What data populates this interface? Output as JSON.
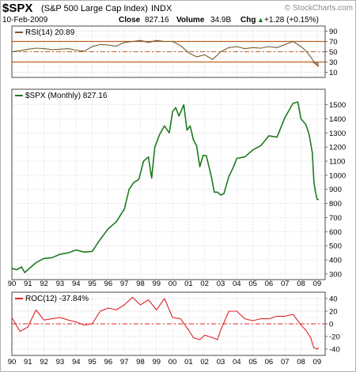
{
  "header": {
    "symbol": "$SPX",
    "name": "(S&P 500 Large Cap Index)",
    "exchange": "INDX",
    "watermark": "© StockCharts.com",
    "date": "10-Feb-2009",
    "close_label": "Close",
    "close_value": "827.16",
    "volume_label": "Volume",
    "volume_value": "34.9B",
    "chg_label": "Chg",
    "chg_value": "+1.28 (+0.15%)",
    "chg_arrow": "▲"
  },
  "colors": {
    "price": "#1e7a1e",
    "rsi": "#7a5a2a",
    "rsi_fill": "#a0785a",
    "roc": "#e02020",
    "band": "#c06020",
    "frame": "#4a4a4a",
    "grid": "#c8c8c8"
  },
  "chart_data": [
    {
      "type": "line",
      "title": "RSI(14) 20.89",
      "legend_icon": "line-swatch",
      "ylim": [
        0,
        100
      ],
      "yticks": [
        10,
        30,
        50,
        70,
        90
      ],
      "levels": [
        30,
        50,
        70
      ],
      "x": [
        1990,
        1990.5,
        1991,
        1991.5,
        1992,
        1992.5,
        1993,
        1993.5,
        1994,
        1994.5,
        1995,
        1995.5,
        1996,
        1996.5,
        1997,
        1997.5,
        1998,
        1998.5,
        1999,
        1999.5,
        2000,
        2000.5,
        2001,
        2001.5,
        2002,
        2002.5,
        2003,
        2003.5,
        2004,
        2004.5,
        2005,
        2005.5,
        2006,
        2006.5,
        2007,
        2007.5,
        2008,
        2008.3,
        2008.6,
        2008.9,
        2009.1
      ],
      "series": [
        {
          "values": [
            50,
            52,
            55,
            57,
            56,
            54,
            55,
            56,
            53,
            51,
            60,
            64,
            63,
            61,
            68,
            70,
            72,
            68,
            72,
            70,
            70,
            62,
            48,
            40,
            44,
            35,
            50,
            58,
            60,
            56,
            58,
            57,
            60,
            58,
            64,
            70,
            60,
            52,
            40,
            26,
            21
          ]
        }
      ]
    },
    {
      "type": "line",
      "title": "$SPX (Monthly) 827.16",
      "legend_icon": "line-swatch",
      "ylim": [
        260,
        1610
      ],
      "yticks": [
        300,
        400,
        500,
        600,
        700,
        800,
        900,
        1000,
        1100,
        1200,
        1300,
        1400,
        1500
      ],
      "x": [
        1990.0,
        1990.3,
        1990.6,
        1990.8,
        1991.0,
        1991.5,
        1992.0,
        1992.5,
        1993.0,
        1993.5,
        1994.0,
        1994.5,
        1995.0,
        1995.5,
        1996.0,
        1996.5,
        1997.0,
        1997.3,
        1997.6,
        1997.9,
        1998.2,
        1998.5,
        1998.7,
        1998.9,
        1999.2,
        1999.5,
        1999.8,
        2000.0,
        2000.2,
        2000.4,
        2000.7,
        2000.9,
        2001.1,
        2001.3,
        2001.5,
        2001.7,
        2001.9,
        2002.1,
        2002.4,
        2002.6,
        2002.8,
        2003.0,
        2003.2,
        2003.5,
        2003.8,
        2004.0,
        2004.5,
        2005.0,
        2005.5,
        2006.0,
        2006.5,
        2007.0,
        2007.2,
        2007.5,
        2007.8,
        2008.0,
        2008.3,
        2008.5,
        2008.7,
        2008.8,
        2008.9,
        2009.0,
        2009.1
      ],
      "series": [
        {
          "name": "$SPX",
          "values": [
            340,
            330,
            350,
            310,
            330,
            380,
            410,
            415,
            440,
            450,
            470,
            455,
            460,
            545,
            620,
            670,
            760,
            900,
            950,
            970,
            1100,
            1130,
            980,
            1200,
            1290,
            1350,
            1300,
            1450,
            1480,
            1420,
            1500,
            1320,
            1350,
            1250,
            1210,
            1060,
            1140,
            1140,
            1000,
            880,
            880,
            860,
            870,
            990,
            1060,
            1120,
            1130,
            1180,
            1210,
            1280,
            1270,
            1410,
            1450,
            1510,
            1520,
            1400,
            1360,
            1290,
            1160,
            950,
            880,
            830,
            827
          ]
        }
      ]
    },
    {
      "type": "line",
      "title": "ROC(12) -37.84%",
      "legend_icon": "line-swatch",
      "ylim": [
        -50,
        50
      ],
      "yticks": [
        -40,
        -20,
        0,
        20,
        40
      ],
      "levels": [
        0
      ],
      "x": [
        1990,
        1990.5,
        1991,
        1991.5,
        1992,
        1992.5,
        1993,
        1993.5,
        1994,
        1994.5,
        1995,
        1995.5,
        1996,
        1996.5,
        1997,
        1997.5,
        1998,
        1998.5,
        1999,
        1999.5,
        2000,
        2000.5,
        2001,
        2001.3,
        2001.7,
        2002,
        2002.5,
        2002.8,
        2003,
        2003.5,
        2004,
        2004.5,
        2005,
        2005.5,
        2006,
        2006.5,
        2007,
        2007.5,
        2008,
        2008.3,
        2008.6,
        2008.8,
        2009.0,
        2009.1
      ],
      "series": [
        {
          "name": "ROC",
          "values": [
            10,
            -12,
            -5,
            22,
            6,
            8,
            10,
            6,
            3,
            -2,
            0,
            20,
            25,
            22,
            30,
            42,
            30,
            38,
            22,
            40,
            10,
            8,
            -10,
            -22,
            -25,
            -18,
            -22,
            -25,
            -10,
            20,
            20,
            8,
            5,
            8,
            8,
            12,
            12,
            15,
            -2,
            -10,
            -22,
            -38,
            -40,
            -38
          ]
        }
      ]
    }
  ],
  "x_axis": {
    "xlim": [
      1990,
      2009.5
    ],
    "ticks": [
      1990,
      1991,
      1992,
      1993,
      1994,
      1995,
      1996,
      1997,
      1998,
      1999,
      2000,
      2001,
      2002,
      2003,
      2004,
      2005,
      2006,
      2007,
      2008,
      2009
    ],
    "labels": [
      "90",
      "91",
      "92",
      "93",
      "94",
      "95",
      "96",
      "97",
      "98",
      "99",
      "00",
      "01",
      "02",
      "03",
      "04",
      "05",
      "06",
      "07",
      "08",
      "09"
    ]
  }
}
